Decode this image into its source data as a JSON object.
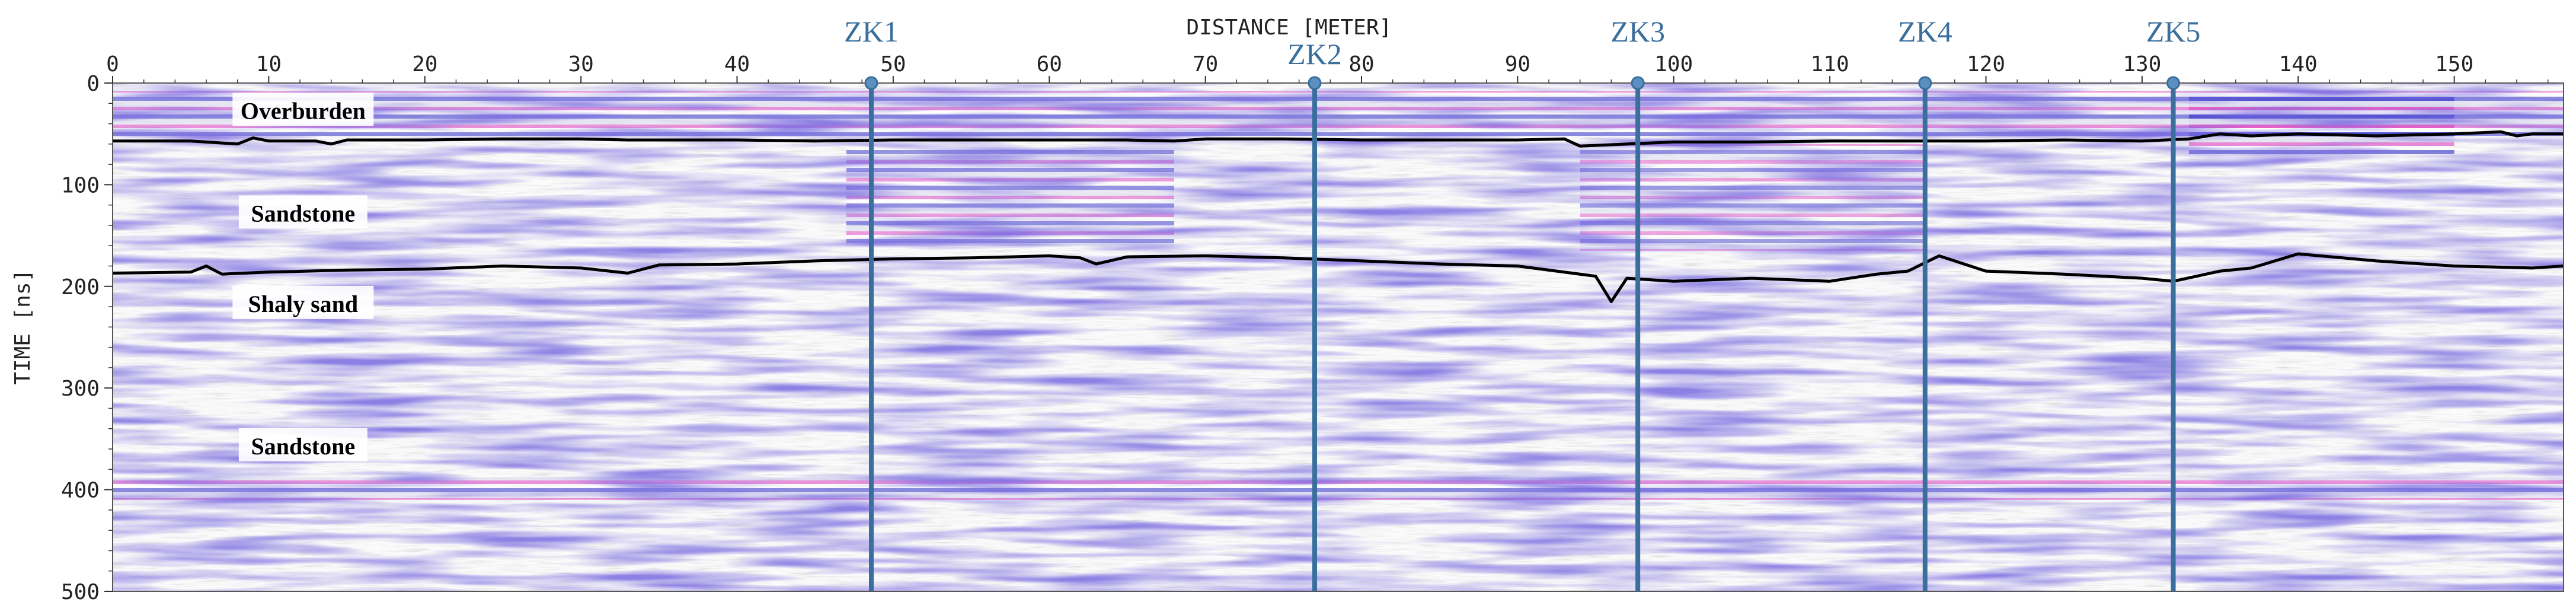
{
  "chart_data": {
    "type": "radargram",
    "title": "",
    "xlabel": "DISTANCE [METER]",
    "ylabel": "TIME [ns]",
    "xlim": [
      0,
      157
    ],
    "ylim": [
      0,
      500
    ],
    "x_ticks": [
      0,
      10,
      20,
      30,
      40,
      50,
      60,
      70,
      80,
      90,
      100,
      110,
      120,
      130,
      140,
      150
    ],
    "y_ticks": [
      0,
      100,
      200,
      300,
      400,
      500
    ],
    "y_reversed": true,
    "grid": false,
    "colors": {
      "positive": "#e040c0",
      "negative": "#3030c8",
      "background": "#ffffff",
      "interpreted_line": "#000000",
      "borehole": "#3a6e9c"
    },
    "boreholes": [
      {
        "name": "ZK1",
        "x": 48.6
      },
      {
        "name": "ZK2",
        "x": 77.0
      },
      {
        "name": "ZK3",
        "x": 97.7
      },
      {
        "name": "ZK4",
        "x": 116.1
      },
      {
        "name": "ZK5",
        "x": 132.0
      }
    ],
    "layers": [
      {
        "name": "Overburden",
        "time": 27
      },
      {
        "name": "Sandstone",
        "time": 128
      },
      {
        "name": "Shaly sand",
        "time": 217
      },
      {
        "name": "Sandstone",
        "time": 357
      }
    ],
    "interfaces": [
      {
        "name": "overburden-base",
        "x": [
          0,
          5,
          8,
          9,
          10,
          13,
          14,
          15,
          20,
          25,
          30,
          33,
          40,
          45,
          50,
          55,
          60,
          65,
          68,
          70,
          75,
          80,
          85,
          90,
          93,
          94,
          100,
          105,
          110,
          115,
          120,
          125,
          130,
          133,
          135,
          137,
          140,
          145,
          150,
          153,
          154,
          155,
          157
        ],
        "y": [
          57,
          57,
          60,
          54,
          57,
          57,
          60,
          56,
          56,
          55,
          55,
          56,
          56,
          57,
          56,
          56,
          56,
          56,
          57,
          55,
          55,
          56,
          56,
          56,
          55,
          62,
          58,
          58,
          57,
          57,
          57,
          56,
          57,
          55,
          50,
          52,
          50,
          52,
          50,
          48,
          52,
          50,
          50
        ]
      },
      {
        "name": "sandstone-base",
        "x": [
          0,
          5,
          6,
          7,
          10,
          15,
          20,
          25,
          30,
          33,
          35,
          40,
          45,
          50,
          55,
          60,
          62,
          63,
          65,
          70,
          75,
          80,
          85,
          90,
          95,
          96,
          97,
          100,
          105,
          110,
          113,
          115,
          117,
          120,
          125,
          130,
          132,
          135,
          137,
          140,
          145,
          150,
          155,
          157
        ],
        "y": [
          187,
          186,
          180,
          188,
          186,
          184,
          183,
          180,
          182,
          187,
          179,
          178,
          175,
          173,
          172,
          170,
          172,
          178,
          171,
          170,
          172,
          175,
          178,
          180,
          190,
          215,
          192,
          195,
          192,
          195,
          188,
          185,
          170,
          185,
          188,
          192,
          195,
          185,
          182,
          168,
          175,
          180,
          182,
          180
        ]
      }
    ],
    "reflector": {
      "name": "deep-reflector",
      "time_top": 388,
      "time_bottom": 410,
      "x_start": 0,
      "x_end": 157
    }
  }
}
